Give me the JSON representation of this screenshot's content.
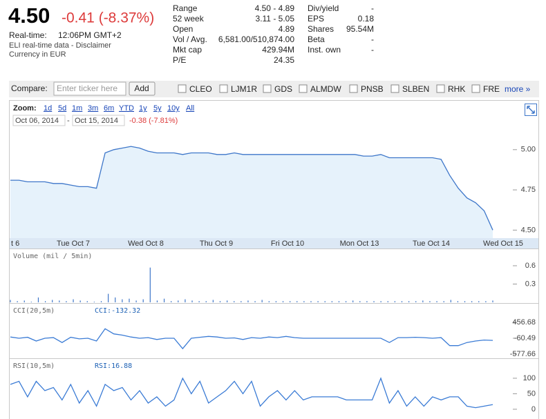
{
  "header": {
    "price": "4.50",
    "change": "-0.41 (-8.37%)",
    "realtime_label": "Real-time:",
    "time": "12:06PM GMT+2",
    "disclaimer": "ELI real-time data - Disclaimer",
    "currency": "Currency in EUR"
  },
  "stats": {
    "left": [
      [
        "Range",
        "4.50 - 4.89"
      ],
      [
        "52 week",
        "3.11 - 5.05"
      ],
      [
        "Open",
        "4.89"
      ],
      [
        "Vol / Avg.",
        "6,581.00/510,874.00"
      ],
      [
        "Mkt cap",
        "429.94M"
      ],
      [
        "P/E",
        "24.35"
      ]
    ],
    "right": [
      [
        "Div/yield",
        "-"
      ],
      [
        "EPS",
        "0.18"
      ],
      [
        "Shares",
        "95.54M"
      ],
      [
        "Beta",
        "-"
      ],
      [
        "Inst. own",
        "-"
      ]
    ]
  },
  "compare": {
    "label": "Compare:",
    "placeholder": "Enter ticker here",
    "button": "Add",
    "tickers": [
      "CLEO",
      "LJM1R",
      "GDS",
      "ALMDW",
      "PNSB",
      "SLBEN",
      "RHK",
      "FRE"
    ],
    "more": "more »"
  },
  "zoom": {
    "label": "Zoom:",
    "options": [
      "1d",
      "5d",
      "1m",
      "3m",
      "6m",
      "YTD",
      "1y",
      "5y",
      "10y",
      "All"
    ],
    "date_from": "Oct 06, 2014",
    "separator": "-",
    "date_to": "Oct 15, 2014",
    "change": "-0.38 (-7.81%)"
  },
  "chart_data": [
    {
      "type": "area",
      "color": "#3d76c9",
      "fill": "#e6f2fb",
      "ylim": [
        4.45,
        5.115
      ],
      "yticks": [
        {
          "value": 4.5,
          "label": "4.50"
        },
        {
          "value": 4.75,
          "label": "4.75"
        },
        {
          "value": 5,
          "label": "5.00"
        }
      ],
      "day_labels": [
        "t 6",
        "Tue Oct 7",
        "Wed Oct 8",
        "Thu Oct 9",
        "Fri Oct 10",
        "Mon Oct 13",
        "Tue Oct 14",
        "Wed Oct 15"
      ],
      "values": [
        4.81,
        4.81,
        4.8,
        4.8,
        4.8,
        4.79,
        4.79,
        4.78,
        4.77,
        4.77,
        4.76,
        4.98,
        5.0,
        5.01,
        5.02,
        5.01,
        4.99,
        4.98,
        4.98,
        4.98,
        4.97,
        4.98,
        4.98,
        4.98,
        4.97,
        4.97,
        4.98,
        4.97,
        4.97,
        4.97,
        4.97,
        4.97,
        4.97,
        4.97,
        4.97,
        4.97,
        4.97,
        4.97,
        4.97,
        4.97,
        4.97,
        4.96,
        4.96,
        4.97,
        4.95,
        4.95,
        4.95,
        4.95,
        4.95,
        4.95,
        4.94,
        4.84,
        4.76,
        4.7,
        4.67,
        4.62,
        4.5
      ]
    },
    {
      "type": "bar",
      "label": "Volume (mil / 5min)",
      "color": "#3d76c9",
      "ylim": [
        0,
        0.86
      ],
      "yticks": [
        0.3,
        0.6
      ],
      "values": [
        0.04,
        0.02,
        0.03,
        0.01,
        0.08,
        0.02,
        0.04,
        0.03,
        0.02,
        0.05,
        0.03,
        0.02,
        0.01,
        0.02,
        0.14,
        0.08,
        0.05,
        0.06,
        0.03,
        0.05,
        0.57,
        0.03,
        0.06,
        0.02,
        0.03,
        0.05,
        0.03,
        0.02,
        0.02,
        0.04,
        0.02,
        0.03,
        0.02,
        0.02,
        0.03,
        0.02,
        0.04,
        0.02,
        0.02,
        0.02,
        0.02,
        0.02,
        0.02,
        0.02,
        0.02,
        0.02,
        0.02,
        0.02,
        0.02,
        0.03,
        0.02,
        0.02,
        0.02,
        0.02,
        0.02,
        0.02,
        0.02,
        0.02,
        0.02,
        0.03,
        0.02,
        0.02,
        0.02,
        0.04,
        0.02,
        0.02,
        0.02,
        0.02,
        0.02,
        0.03
      ]
    },
    {
      "type": "line",
      "label": "CCI(20,5m)",
      "current": "CCI:-132.32",
      "color": "#3a7bd5",
      "ylim": [
        -690,
        1041
      ],
      "yticks": [
        456.68,
        -60.49,
        -577.66
      ],
      "values": [
        -20,
        -60,
        -30,
        -150,
        -60,
        -40,
        -200,
        -30,
        -80,
        -60,
        -150,
        250,
        80,
        40,
        -20,
        -60,
        -40,
        -100,
        -60,
        -60,
        -400,
        -60,
        -30,
        0,
        -20,
        -60,
        -50,
        -100,
        -40,
        -60,
        -20,
        -40,
        0,
        -40,
        -60,
        -60,
        -60,
        -60,
        -60,
        -60,
        -60,
        -60,
        -60,
        -60,
        -200,
        -40,
        -40,
        -30,
        -40,
        -60,
        -40,
        -300,
        -300,
        -200,
        -150,
        -120,
        -130
      ]
    },
    {
      "type": "line",
      "label": "RSI(10,5m)",
      "current": "RSI:16.88",
      "color": "#3a7bd5",
      "ylim": [
        -27,
        160
      ],
      "yticks": [
        100,
        50,
        0
      ],
      "values": [
        80,
        90,
        40,
        90,
        60,
        70,
        30,
        80,
        20,
        60,
        10,
        80,
        60,
        70,
        30,
        60,
        20,
        40,
        10,
        30,
        100,
        50,
        90,
        20,
        40,
        60,
        90,
        50,
        90,
        10,
        40,
        60,
        30,
        60,
        30,
        40,
        40,
        40,
        40,
        30,
        30,
        30,
        30,
        100,
        20,
        60,
        10,
        40,
        10,
        40,
        30,
        40,
        40,
        10,
        5,
        10,
        15
      ]
    }
  ]
}
